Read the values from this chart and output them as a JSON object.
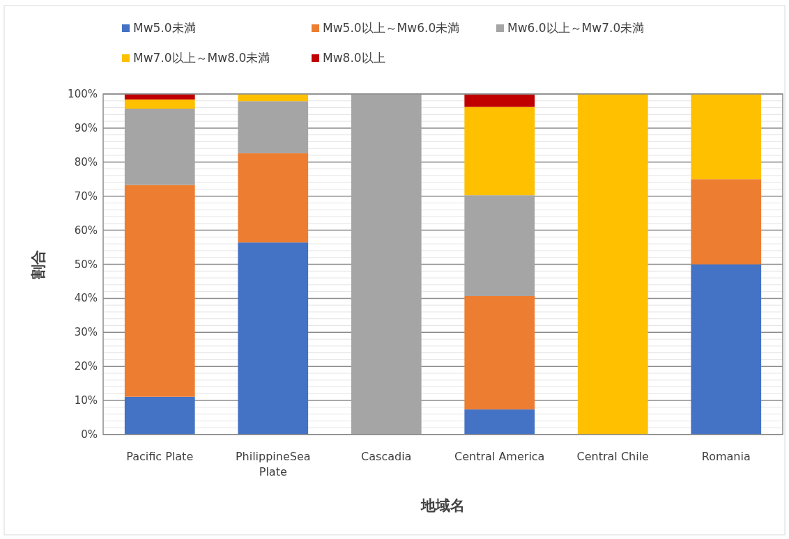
{
  "chart_data": {
    "type": "bar",
    "stacked": true,
    "xlabel": "地域名",
    "ylabel": "割合",
    "legend": "top",
    "grid": "y",
    "categories": [
      "Pacific Plate",
      "PhilippineSea Plate",
      "Cascadia",
      "Central America",
      "Central Chile",
      "Romania"
    ],
    "series": [
      {
        "name": "Mw5.0未満",
        "color": "#4472c4",
        "values": [
          11.1,
          56.4,
          0,
          7.4,
          0,
          50
        ]
      },
      {
        "name": "Mw5.0以上～Mw6.0未満",
        "color": "#ed7d31",
        "values": [
          62.2,
          26.2,
          0,
          33.3,
          0,
          25
        ]
      },
      {
        "name": "Mw6.0以上～Mw7.0未満",
        "color": "#a5a5a5",
        "values": [
          22.4,
          15.3,
          100,
          29.6,
          0,
          0
        ]
      },
      {
        "name": "Mw7.0以上～Mw8.0未満",
        "color": "#ffc000",
        "values": [
          2.7,
          2.1,
          0,
          25.9,
          100,
          25
        ]
      },
      {
        "name": "Mw8.0以上",
        "color": "#c00000",
        "values": [
          1.6,
          0,
          0,
          3.7,
          0,
          0
        ]
      }
    ],
    "ylim": [
      0,
      100
    ],
    "yticks": [
      {
        "value": 0,
        "label": "0%"
      },
      {
        "value": 2,
        "label": null
      },
      {
        "value": 4,
        "label": null
      },
      {
        "value": 6,
        "label": null
      },
      {
        "value": 8,
        "label": null
      },
      {
        "value": 10,
        "label": "10%"
      },
      {
        "value": 12,
        "label": null
      },
      {
        "value": 14,
        "label": null
      },
      {
        "value": 16,
        "label": null
      },
      {
        "value": 18,
        "label": null
      },
      {
        "value": 20,
        "label": "20%"
      },
      {
        "value": 22,
        "label": null
      },
      {
        "value": 24,
        "label": null
      },
      {
        "value": 26,
        "label": null
      },
      {
        "value": 28,
        "label": null
      },
      {
        "value": 30,
        "label": "30%"
      },
      {
        "value": 32,
        "label": null
      },
      {
        "value": 34,
        "label": null
      },
      {
        "value": 36,
        "label": null
      },
      {
        "value": 38,
        "label": null
      },
      {
        "value": 40,
        "label": "40%"
      },
      {
        "value": 42,
        "label": null
      },
      {
        "value": 44,
        "label": null
      },
      {
        "value": 46,
        "label": null
      },
      {
        "value": 48,
        "label": null
      },
      {
        "value": 50,
        "label": "50%"
      },
      {
        "value": 52,
        "label": null
      },
      {
        "value": 54,
        "label": null
      },
      {
        "value": 56,
        "label": null
      },
      {
        "value": 58,
        "label": null
      },
      {
        "value": 60,
        "label": "60%"
      },
      {
        "value": 62,
        "label": null
      },
      {
        "value": 64,
        "label": null
      },
      {
        "value": 66,
        "label": null
      },
      {
        "value": 68,
        "label": null
      },
      {
        "value": 70,
        "label": "70%"
      },
      {
        "value": 72,
        "label": null
      },
      {
        "value": 74,
        "label": null
      },
      {
        "value": 76,
        "label": null
      },
      {
        "value": 78,
        "label": null
      },
      {
        "value": 80,
        "label": "80%"
      },
      {
        "value": 82,
        "label": null
      },
      {
        "value": 84,
        "label": null
      },
      {
        "value": 86,
        "label": null
      },
      {
        "value": 88,
        "label": null
      },
      {
        "value": 90,
        "label": "90%"
      },
      {
        "value": 92,
        "label": null
      },
      {
        "value": 94,
        "label": null
      },
      {
        "value": 96,
        "label": null
      },
      {
        "value": 98,
        "label": null
      },
      {
        "value": 100,
        "label": "100%"
      }
    ]
  }
}
